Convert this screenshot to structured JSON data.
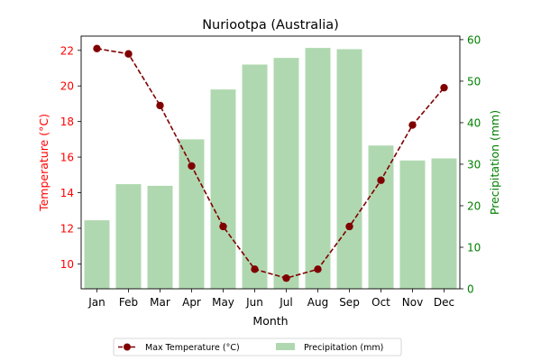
{
  "chart_data": {
    "type": "bar+line",
    "title": "Nuriootpa (Australia)",
    "xlabel": "Month",
    "ylabel_left": "Temperature (°C)",
    "ylabel_right": "Precipitation (mm)",
    "categories": [
      "Jan",
      "Feb",
      "Mar",
      "Apr",
      "May",
      "Jun",
      "Jul",
      "Aug",
      "Sep",
      "Oct",
      "Nov",
      "Dec"
    ],
    "series": [
      {
        "name": "Max Temperature (°C)",
        "type": "line",
        "axis": "left",
        "values": [
          22.1,
          21.8,
          18.9,
          15.5,
          12.1,
          9.7,
          9.2,
          9.7,
          12.1,
          14.7,
          17.8,
          19.9
        ]
      },
      {
        "name": "Precipitation (mm)",
        "type": "bar",
        "axis": "right",
        "values": [
          16.5,
          25.2,
          24.8,
          36.0,
          48.0,
          54.0,
          55.6,
          58.0,
          57.7,
          34.5,
          30.9,
          31.4
        ]
      }
    ],
    "y_left": {
      "min": 8.6,
      "max": 22.8,
      "ticks": [
        10,
        12,
        14,
        16,
        18,
        20,
        22
      ]
    },
    "y_right": {
      "min": 0,
      "max": 60.85,
      "ticks": [
        0,
        10,
        20,
        30,
        40,
        50,
        60
      ]
    },
    "grid": false,
    "legend_position": "bottom-center",
    "colors": {
      "line": "#800000",
      "bar": "#b0d8b0",
      "left_axis": "#ff0000",
      "right_axis": "#008000",
      "axes": "#000000"
    }
  }
}
